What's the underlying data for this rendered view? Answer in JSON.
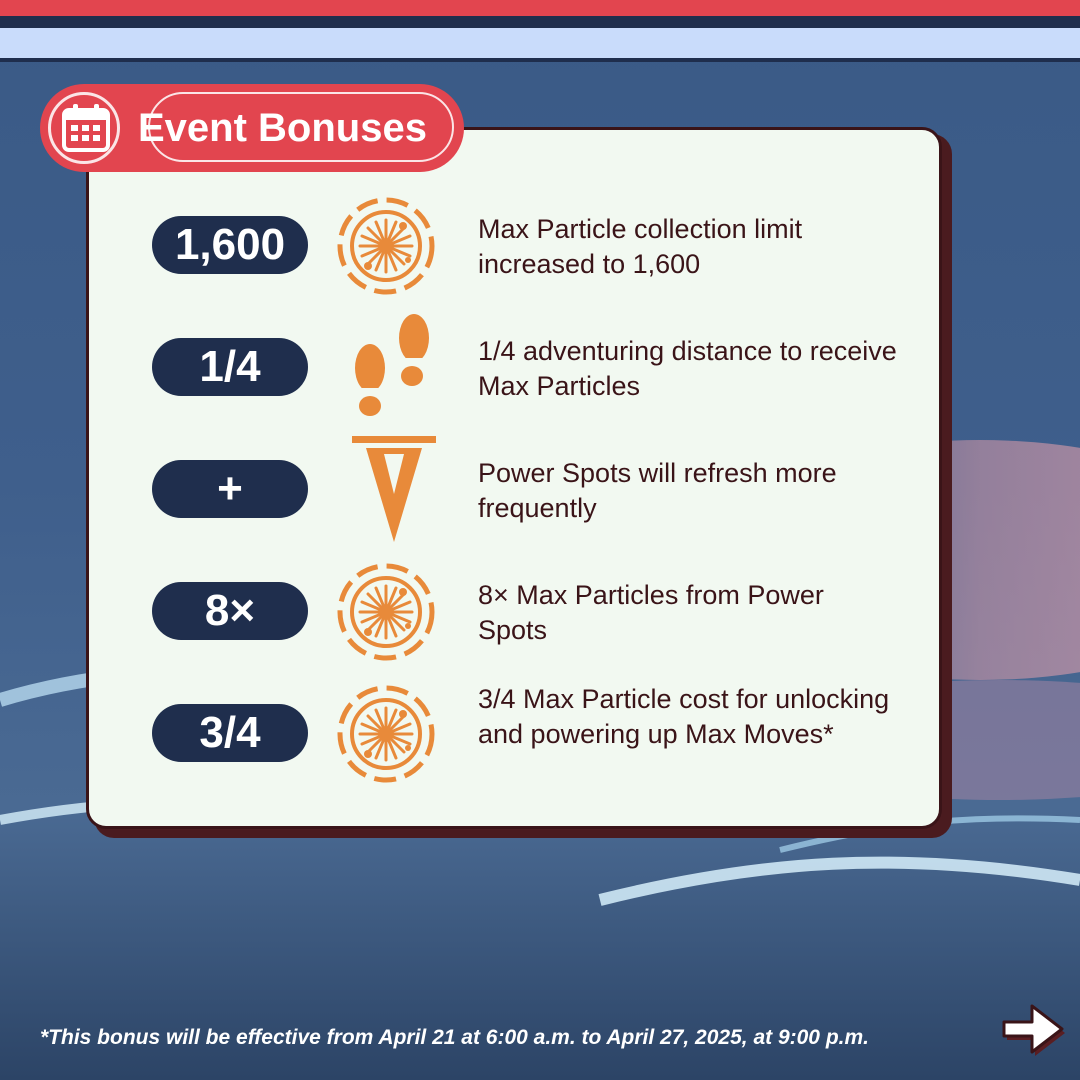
{
  "header": {
    "title": "Event Bonuses",
    "icon": "calendar-icon"
  },
  "bonuses": [
    {
      "value": "1,600",
      "icon": "max-particle-icon",
      "description": "Max Particle collection limit increased to 1,600"
    },
    {
      "value": "1/4",
      "icon": "footprints-icon",
      "description": "1/4 adventuring distance to receive Max Particles"
    },
    {
      "value": "+",
      "icon": "power-spot-icon",
      "description": "Power Spots will refresh more frequently"
    },
    {
      "value": "8×",
      "icon": "max-particle-icon",
      "description": "8× Max Particles from Power Spots"
    },
    {
      "value": "3/4",
      "icon": "max-particle-icon",
      "description": "3/4 Max Particle cost for unlocking and powering up Max Moves*"
    }
  ],
  "footnote": "*This bonus will be effective from April 21 at 6:00 a.m. to April 27, 2025, at 9:00 p.m.",
  "navigation": {
    "next_icon": "arrow-right-icon"
  },
  "colors": {
    "accent_red": "#e2454f",
    "navy": "#1f2e4d",
    "icon_orange": "#e88a3a",
    "card_bg": "#f2f9f1",
    "text_dark": "#3a1418"
  }
}
